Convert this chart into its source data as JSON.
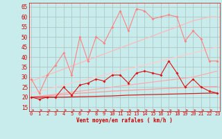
{
  "x": [
    0,
    1,
    2,
    3,
    4,
    5,
    6,
    7,
    8,
    9,
    10,
    11,
    12,
    13,
    14,
    15,
    16,
    17,
    18,
    19,
    20,
    21,
    22,
    23
  ],
  "series": {
    "rafales_scatter": [
      29,
      22,
      31,
      36,
      42,
      31,
      50,
      38,
      50,
      47,
      55,
      63,
      53,
      64,
      63,
      59,
      60,
      61,
      60,
      48,
      53,
      49,
      38,
      38
    ],
    "moyen_scatter": [
      20,
      19,
      20,
      20,
      25,
      21,
      26,
      27,
      29,
      28,
      31,
      31,
      27,
      32,
      33,
      32,
      31,
      38,
      32,
      25,
      29,
      25,
      23,
      22
    ],
    "trend_raf_high": [
      28,
      29.5,
      31,
      32.5,
      34,
      35.5,
      37,
      38.5,
      40,
      41.5,
      43,
      44.5,
      46,
      47.5,
      49,
      50.5,
      52,
      53.5,
      55,
      56.5,
      58,
      59,
      60,
      60
    ],
    "trend_raf_mid": [
      22,
      23,
      24,
      25,
      26,
      27,
      28,
      29,
      30,
      31,
      32,
      33,
      34,
      35,
      36,
      37,
      38,
      39,
      40,
      41,
      42,
      43,
      44,
      45
    ],
    "trend_raf_low": [
      20,
      20.5,
      21,
      21.5,
      22,
      22.5,
      23,
      23.5,
      24,
      24.5,
      25,
      25.5,
      26,
      26.5,
      27,
      27.5,
      28,
      28.5,
      29,
      29.5,
      30,
      31,
      32,
      33
    ],
    "trend_moy_high": [
      20,
      20.3,
      20.6,
      21,
      21.3,
      21.6,
      22,
      22.2,
      22.5,
      22.7,
      23,
      23.2,
      23.4,
      23.6,
      23.8,
      24,
      24.2,
      24.4,
      24.6,
      24.8,
      25,
      25.1,
      25.2,
      25.3
    ],
    "trend_moy_low": [
      20,
      20,
      20,
      20,
      20,
      20.1,
      20.2,
      20.3,
      20.4,
      20.5,
      20.6,
      20.8,
      21,
      21.1,
      21.2,
      21.3,
      21.4,
      21.5,
      21.6,
      21.7,
      21.8,
      21.9,
      22,
      22
    ]
  },
  "xlabel": "Vent moyen/en rafales ( km/h )",
  "ylim": [
    13,
    67
  ],
  "xlim": [
    -0.3,
    23.3
  ],
  "yticks": [
    15,
    20,
    25,
    30,
    35,
    40,
    45,
    50,
    55,
    60,
    65
  ],
  "xticks": [
    0,
    1,
    2,
    3,
    4,
    5,
    6,
    7,
    8,
    9,
    10,
    11,
    12,
    13,
    14,
    15,
    16,
    17,
    18,
    19,
    20,
    21,
    22,
    23
  ],
  "bg_color": "#c8ecec",
  "grid_color": "#b0c8c8",
  "color_scatter_raf_light": "#ff8080",
  "color_scatter_raf_dark": "#dd1111",
  "color_trend_raf_high": "#ffb8b8",
  "color_trend_raf_mid": "#ffcccc",
  "color_trend_raf_low": "#ffaaaa",
  "color_trend_moy_high": "#ff9999",
  "color_trend_moy_low": "#cc2222",
  "arrow_color": "#dd2222"
}
